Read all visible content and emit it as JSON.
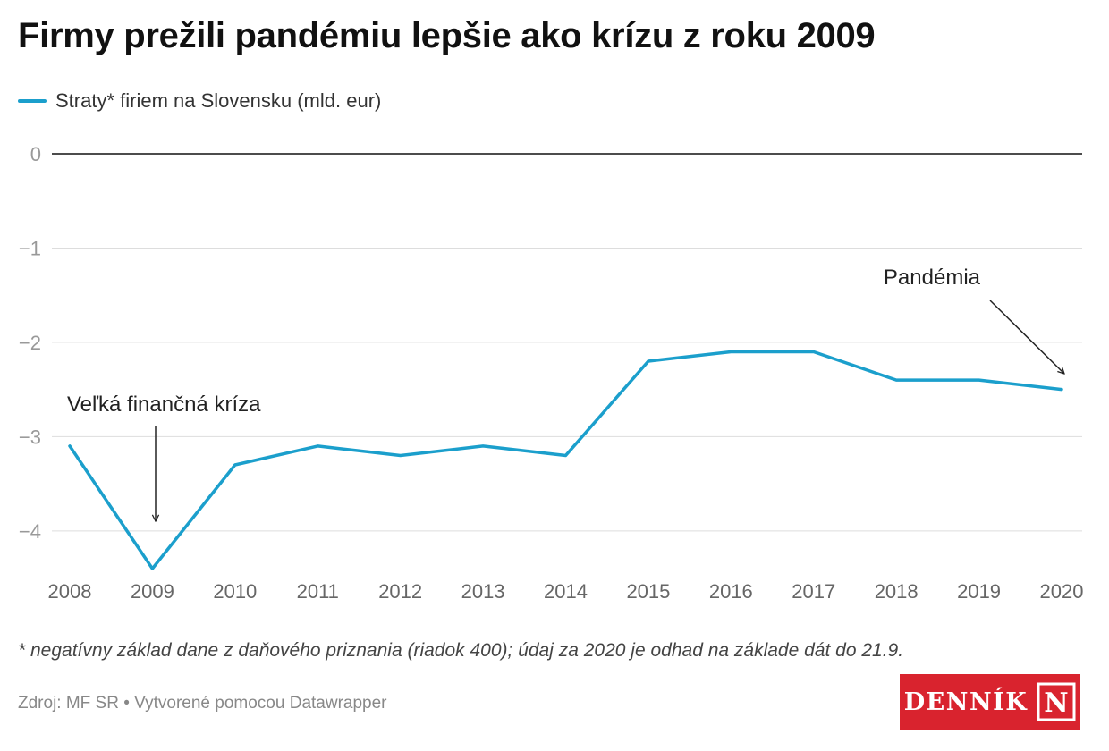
{
  "header": {
    "title": "Firmy prežili pandémiu lepšie ako krízu z roku 2009"
  },
  "legend": {
    "label": "Straty* firiem na Slovensku (mld. eur)"
  },
  "footer": {
    "note": "* negatívny základ dane z daňového priznania (riadok 400); údaj za 2020 je odhad na základe dát do 21.9.",
    "source": "Zdroj: MF SR • Vytvorené pomocou Datawrapper",
    "logo_text": "DENNÍK",
    "logo_mark": "N"
  },
  "colors": {
    "series": "#1b9fcc",
    "logo": "#d9232e"
  },
  "chart_data": {
    "type": "line",
    "title": "Firmy prežili pandémiu lepšie ako krízu z roku 2009",
    "xlabel": "",
    "ylabel": "",
    "x": [
      "2008",
      "2009",
      "2010",
      "2011",
      "2012",
      "2013",
      "2014",
      "2015",
      "2016",
      "2017",
      "2018",
      "2019",
      "2020"
    ],
    "series": [
      {
        "name": "Straty* firiem na Slovensku (mld. eur)",
        "values": [
          -3.1,
          -4.4,
          -3.3,
          -3.1,
          -3.2,
          -3.1,
          -3.2,
          -2.2,
          -2.1,
          -2.1,
          -2.4,
          -2.4,
          -2.5
        ]
      }
    ],
    "ylim": [
      -4.4,
      0
    ],
    "yticks": [
      0,
      -1,
      -2,
      -3,
      -4
    ],
    "ytick_labels": [
      "0",
      "−1",
      "−2",
      "−3",
      "−4"
    ],
    "grid": true,
    "legend_position": "top-left",
    "annotations": [
      {
        "text": "Veľká finančná kríza",
        "x": "2009",
        "y": -4.4
      },
      {
        "text": "Pandémia",
        "x": "2020",
        "y": -2.5
      }
    ]
  }
}
